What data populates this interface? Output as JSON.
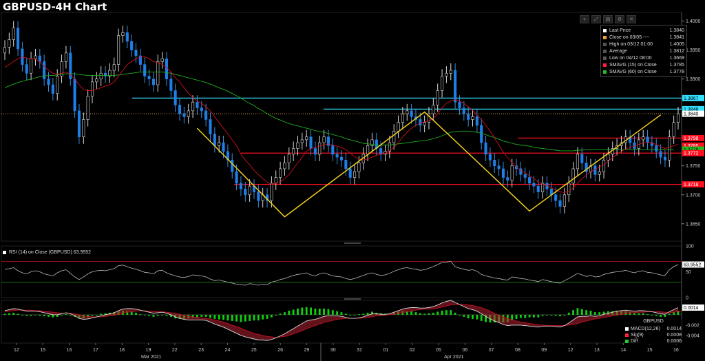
{
  "title": "GBPUSD-4H Chart",
  "toolbar": {
    "icons": [
      "+",
      "⤢",
      "▤",
      "⚙",
      "✕"
    ]
  },
  "legend": {
    "items": [
      {
        "label": "Last Price",
        "value": "1.3840",
        "color": "#ffffff"
      },
      {
        "label": "Close on 03/05 ----",
        "value": "1.3841",
        "color": "#f0a030"
      },
      {
        "label": "High on 03/12 01:00",
        "value": "1.4005",
        "color": "#555555"
      },
      {
        "label": "Average",
        "value": "1.3812",
        "color": "#555555"
      },
      {
        "label": "Low on 04/12 08:00",
        "value": "1.3669",
        "color": "#555555"
      },
      {
        "label": "SMAVG (15)  on Close",
        "value": "1.3785",
        "color": "#ff2040"
      },
      {
        "label": "SMAVG (60)  on Close",
        "value": "1.3778",
        "color": "#20c020"
      }
    ]
  },
  "rsi_legend": "RSI (14)  on Close (GBPUSD) 63.9552",
  "macd_legend": {
    "header": "GBPUSD",
    "items": [
      {
        "label": "MACD(12,26)",
        "value": "0.0014",
        "color": "#ffffff"
      },
      {
        "label": "Sig(9)",
        "value": "0.0008",
        "color": "#ff2040"
      },
      {
        "label": "Diff",
        "value": "0.0006",
        "color": "#20d020"
      }
    ]
  },
  "chart_data": [
    {
      "type": "candlestick",
      "title": "GBPUSD-4H Chart",
      "ylim": [
        1.362,
        1.4015
      ],
      "y_ticks": [
        "1.4000",
        "1.3950",
        "1.3900",
        "1.3850",
        "1.3800",
        "1.3750",
        "1.3700",
        "1.3650"
      ],
      "x_ticks": [
        "12",
        "15",
        "16",
        "17",
        "18",
        "19",
        "22",
        "23",
        "24",
        "25",
        "26",
        "29",
        "30",
        "31",
        "01",
        "02",
        "05",
        "06",
        "07",
        "08",
        "09",
        "12",
        "13",
        "14",
        "15",
        "16"
      ],
      "month_labels": [
        "Mar 2021",
        "Apr 2021"
      ],
      "close": [
        1.3955,
        1.3968,
        1.3988,
        1.3952,
        1.3925,
        1.391,
        1.3935,
        1.394,
        1.393,
        1.39,
        1.389,
        1.3875,
        1.3905,
        1.393,
        1.3945,
        1.39,
        1.3845,
        1.38,
        1.383,
        1.387,
        1.3895,
        1.39,
        1.391,
        1.3905,
        1.3915,
        1.3925,
        1.3975,
        1.398,
        1.3965,
        1.395,
        1.394,
        1.3925,
        1.3905,
        1.39,
        1.389,
        1.393,
        1.3935,
        1.39,
        1.388,
        1.3855,
        1.384,
        1.3835,
        1.3845,
        1.386,
        1.385,
        1.3845,
        1.383,
        1.3805,
        1.3785,
        1.379,
        1.3775,
        1.376,
        1.374,
        1.372,
        1.371,
        1.37,
        1.3715,
        1.3705,
        1.369,
        1.37,
        1.369,
        1.372,
        1.373,
        1.3745,
        1.3755,
        1.377,
        1.378,
        1.379,
        1.3795,
        1.38,
        1.378,
        1.377,
        1.379,
        1.38,
        1.3785,
        1.377,
        1.3765,
        1.376,
        1.3745,
        1.373,
        1.374,
        1.3755,
        1.377,
        1.3785,
        1.3795,
        1.378,
        1.377,
        1.3775,
        1.379,
        1.381,
        1.3825,
        1.384,
        1.3845,
        1.3835,
        1.383,
        1.382,
        1.3825,
        1.384,
        1.3855,
        1.388,
        1.3905,
        1.391,
        1.3915,
        1.386,
        1.385,
        1.384,
        1.383,
        1.3835,
        1.382,
        1.379,
        1.377,
        1.376,
        1.375,
        1.3745,
        1.373,
        1.3725,
        1.375,
        1.3745,
        1.3735,
        1.373,
        1.372,
        1.3715,
        1.3705,
        1.372,
        1.371,
        1.37,
        1.369,
        1.368,
        1.37,
        1.372,
        1.3745,
        1.377,
        1.3755,
        1.374,
        1.375,
        1.3735,
        1.374,
        1.376,
        1.377,
        1.378,
        1.3785,
        1.379,
        1.38,
        1.379,
        1.378,
        1.3795,
        1.38,
        1.379,
        1.3785,
        1.3775,
        1.3765,
        1.376,
        1.38,
        1.3825,
        1.384
      ],
      "ma15": [
        1.392,
        1.3925,
        1.393,
        1.3935,
        1.3938,
        1.3936,
        1.3935,
        1.3934,
        1.393,
        1.3922,
        1.3915,
        1.391,
        1.3908,
        1.391,
        1.3912,
        1.3908,
        1.39,
        1.389,
        1.3882,
        1.388,
        1.388,
        1.3882,
        1.3885,
        1.3888,
        1.389,
        1.3895,
        1.3905,
        1.3915,
        1.3925,
        1.393,
        1.3935,
        1.3938,
        1.3938,
        1.3935,
        1.393,
        1.3928,
        1.3925,
        1.392,
        1.3912,
        1.3902,
        1.3895,
        1.3885,
        1.3875,
        1.3868,
        1.3862,
        1.3858,
        1.3852,
        1.3845,
        1.3835,
        1.3825,
        1.3815,
        1.3805,
        1.3795,
        1.3785,
        1.377,
        1.376,
        1.3752,
        1.3742,
        1.3735,
        1.3728,
        1.3722,
        1.3718,
        1.372,
        1.3722,
        1.3728,
        1.3735,
        1.3745,
        1.3755,
        1.3765,
        1.3775,
        1.378,
        1.3782,
        1.3784,
        1.3786,
        1.3788,
        1.3786,
        1.3784,
        1.3782,
        1.3778,
        1.3772,
        1.3766,
        1.3762,
        1.376,
        1.3762,
        1.3765,
        1.3768,
        1.377,
        1.3772,
        1.3776,
        1.3782,
        1.379,
        1.38,
        1.3808,
        1.3815,
        1.382,
        1.3824,
        1.3826,
        1.3828,
        1.3832,
        1.384,
        1.385,
        1.3858,
        1.3862,
        1.3864,
        1.3862,
        1.3858,
        1.3852,
        1.3846,
        1.3838,
        1.383,
        1.382,
        1.381,
        1.3798,
        1.3786,
        1.3774,
        1.3764,
        1.3756,
        1.3748,
        1.3742,
        1.3738,
        1.3733,
        1.3728,
        1.3722,
        1.3718,
        1.3716,
        1.3712,
        1.3708,
        1.3705,
        1.3704,
        1.3706,
        1.3712,
        1.372,
        1.3728,
        1.3734,
        1.374,
        1.3744,
        1.3748,
        1.3752,
        1.3758,
        1.3764,
        1.377,
        1.3775,
        1.3779,
        1.3782,
        1.3784,
        1.3787,
        1.379,
        1.379,
        1.3789,
        1.3787,
        1.3783,
        1.378,
        1.3782,
        1.3785,
        1.3787
      ],
      "ma60": [
        1.3885,
        1.3888,
        1.3891,
        1.3894,
        1.3896,
        1.3898,
        1.39,
        1.3902,
        1.3904,
        1.3905,
        1.3906,
        1.3906,
        1.3907,
        1.3908,
        1.3909,
        1.3909,
        1.3909,
        1.3908,
        1.3907,
        1.3906,
        1.3906,
        1.3906,
        1.3906,
        1.3906,
        1.3906,
        1.3906,
        1.3907,
        1.3908,
        1.3909,
        1.391,
        1.3911,
        1.3912,
        1.3912,
        1.3912,
        1.3912,
        1.3912,
        1.3912,
        1.3911,
        1.391,
        1.3908,
        1.3906,
        1.3904,
        1.3902,
        1.39,
        1.3898,
        1.3896,
        1.3894,
        1.3891,
        1.3888,
        1.3885,
        1.3882,
        1.3879,
        1.3875,
        1.3871,
        1.3867,
        1.3862,
        1.3858,
        1.3854,
        1.3849,
        1.3845,
        1.384,
        1.3836,
        1.3832,
        1.3829,
        1.3826,
        1.3823,
        1.3821,
        1.3819,
        1.3817,
        1.3815,
        1.3813,
        1.3811,
        1.3809,
        1.3808,
        1.3806,
        1.3804,
        1.3802,
        1.38,
        1.3797,
        1.3795,
        1.3793,
        1.3791,
        1.3789,
        1.3788,
        1.3787,
        1.3786,
        1.3786,
        1.3786,
        1.3786,
        1.3787,
        1.3788,
        1.3789,
        1.379,
        1.3791,
        1.3792,
        1.3793,
        1.3794,
        1.3795,
        1.3797,
        1.3799,
        1.3802,
        1.3805,
        1.3808,
        1.3809,
        1.381,
        1.381,
        1.381,
        1.3809,
        1.3808,
        1.3806,
        1.3804,
        1.3801,
        1.3799,
        1.3796,
        1.3793,
        1.3791,
        1.3789,
        1.3787,
        1.3786,
        1.3785,
        1.3784,
        1.3782,
        1.3781,
        1.378,
        1.3779,
        1.3778,
        1.3777,
        1.3776,
        1.3776,
        1.3776,
        1.3776,
        1.3777,
        1.3777,
        1.3778,
        1.3778,
        1.3778,
        1.3778,
        1.3778,
        1.3778,
        1.3778,
        1.3778,
        1.3778,
        1.3778,
        1.3778,
        1.3778,
        1.3778,
        1.3778,
        1.3778,
        1.3778,
        1.3778,
        1.3778,
        1.3778,
        1.3778,
        1.3778
      ],
      "hlines": [
        {
          "value": 1.3867,
          "label": "1.3867",
          "color": "#33e0ff"
        },
        {
          "value": 1.3848,
          "label": "1.3848",
          "color": "#33e0ff"
        },
        {
          "value": 1.384,
          "label": "1.3840",
          "color": "#ffffff"
        },
        {
          "value": 1.3798,
          "label": "1.3798",
          "color": "#ff1020"
        },
        {
          "value": 1.3785,
          "label": "1.3785",
          "color": "#ff1020"
        },
        {
          "value": 1.3778,
          "label": "1.3778",
          "color": "#20c020"
        },
        {
          "value": 1.3772,
          "label": "1.3772",
          "color": "#ff1020"
        },
        {
          "value": 1.3718,
          "label": "1.3718",
          "color": "#ff1020"
        }
      ],
      "trendlines": [
        {
          "points": [
            [
              44,
              1.3815
            ],
            [
              64,
              1.3662
            ],
            [
              96,
              1.3843
            ],
            [
              120,
              1.3672
            ],
            [
              150,
              1.3838
            ]
          ],
          "color": "#f0d020"
        }
      ]
    },
    {
      "type": "line",
      "name": "RSI (14) on Close (GBPUSD)",
      "ylim": [
        0,
        100
      ],
      "y_ticks": [
        "100",
        "50",
        "0"
      ],
      "last_label": "63.9552",
      "levels": [
        70,
        30
      ],
      "values": [
        55,
        56,
        58,
        52,
        48,
        46,
        50,
        52,
        50,
        46,
        44,
        42,
        48,
        52,
        54,
        47,
        40,
        35,
        40,
        46,
        50,
        52,
        53,
        52,
        54,
        56,
        62,
        63,
        60,
        57,
        55,
        52,
        49,
        48,
        46,
        52,
        53,
        48,
        45,
        42,
        40,
        39,
        41,
        44,
        43,
        42,
        40,
        36,
        33,
        34,
        32,
        30,
        28,
        26,
        25,
        24,
        27,
        26,
        24,
        26,
        25,
        30,
        32,
        35,
        37,
        40,
        43,
        45,
        46,
        48,
        44,
        42,
        46,
        48,
        45,
        42,
        41,
        40,
        37,
        35,
        37,
        40,
        43,
        46,
        48,
        45,
        43,
        44,
        47,
        51,
        54,
        57,
        58,
        56,
        55,
        53,
        54,
        57,
        60,
        64,
        68,
        69,
        70,
        60,
        57,
        55,
        53,
        54,
        51,
        45,
        42,
        40,
        38,
        37,
        35,
        34,
        40,
        39,
        37,
        36,
        34,
        33,
        31,
        35,
        33,
        31,
        29,
        28,
        33,
        37,
        42,
        47,
        44,
        41,
        43,
        40,
        41,
        45,
        47,
        49,
        50,
        51,
        53,
        50,
        48,
        51,
        52,
        49,
        48,
        46,
        44,
        43,
        54,
        60,
        64
      ]
    },
    {
      "type": "bar",
      "name": "MACD(12,26)",
      "ylim": [
        -0.0055,
        0.0028
      ],
      "y_ticks": [
        "0.0014",
        "-0.002",
        "-0.004"
      ],
      "last_label": "0.0014",
      "macd": [
        0.0008,
        0.001,
        0.0012,
        0.0011,
        0.0009,
        0.0007,
        0.0007,
        0.0007,
        0.0006,
        0.0004,
        0.0002,
        0.0,
        0.0,
        0.0002,
        0.0004,
        0.0002,
        -0.0002,
        -0.0007,
        -0.0009,
        -0.0008,
        -0.0006,
        -0.0004,
        -0.0002,
        0.0,
        0.0002,
        0.0004,
        0.0008,
        0.0011,
        0.0012,
        0.0012,
        0.0011,
        0.0009,
        0.0007,
        0.0005,
        0.0003,
        0.0004,
        0.0005,
        0.0003,
        0.0,
        -0.0004,
        -0.0007,
        -0.0009,
        -0.001,
        -0.001,
        -0.001,
        -0.001,
        -0.0011,
        -0.0014,
        -0.0018,
        -0.0021,
        -0.0024,
        -0.0028,
        -0.0032,
        -0.0036,
        -0.004,
        -0.0043,
        -0.0045,
        -0.0047,
        -0.0049,
        -0.0049,
        -0.005,
        -0.0048,
        -0.0045,
        -0.0041,
        -0.0037,
        -0.0032,
        -0.0027,
        -0.0022,
        -0.0017,
        -0.0012,
        -0.001,
        -0.0009,
        -0.0006,
        -0.0003,
        -0.0002,
        -0.0002,
        -0.0002,
        -0.0003,
        -0.0005,
        -0.0007,
        -0.0007,
        -0.0006,
        -0.0004,
        -0.0001,
        0.0002,
        0.0002,
        0.0001,
        0.0001,
        0.0002,
        0.0005,
        0.0008,
        0.0011,
        0.0013,
        0.0014,
        0.0014,
        0.0013,
        0.0013,
        0.0014,
        0.0016,
        0.0019,
        0.0023,
        0.0026,
        0.0028,
        0.0024,
        0.002,
        0.0016,
        0.0012,
        0.001,
        0.0007,
        0.0002,
        -0.0003,
        -0.0008,
        -0.0012,
        -0.0015,
        -0.0019,
        -0.0021,
        -0.002,
        -0.002,
        -0.002,
        -0.0021,
        -0.0022,
        -0.0023,
        -0.0024,
        -0.0022,
        -0.0022,
        -0.0022,
        -0.0023,
        -0.0024,
        -0.0021,
        -0.0016,
        -0.001,
        -0.0004,
        -0.0003,
        -0.0003,
        -0.0002,
        -0.0003,
        -0.0002,
        0.0001,
        0.0003,
        0.0005,
        0.0007,
        0.0008,
        0.0009,
        0.0008,
        0.0007,
        0.0008,
        0.0008,
        0.0007,
        0.0006,
        0.0004,
        0.0002,
        0.0001,
        0.0006,
        0.001,
        0.0014
      ],
      "signal": [
        0.0006,
        0.0007,
        0.0008,
        0.0009,
        0.0009,
        0.0009,
        0.0009,
        0.0008,
        0.0008,
        0.0007,
        0.0006,
        0.0005,
        0.0004,
        0.0003,
        0.0003,
        0.0003,
        0.0002,
        0.0,
        -0.0002,
        -0.0003,
        -0.0004,
        -0.0004,
        -0.0004,
        -0.0003,
        -0.0002,
        -0.0001,
        0.0001,
        0.0003,
        0.0005,
        0.0006,
        0.0007,
        0.0008,
        0.0008,
        0.0007,
        0.0007,
        0.0006,
        0.0006,
        0.0005,
        0.0004,
        0.0003,
        0.0001,
        -0.0001,
        -0.0003,
        -0.0004,
        -0.0005,
        -0.0006,
        -0.0007,
        -0.0008,
        -0.001,
        -0.0012,
        -0.0014,
        -0.0017,
        -0.002,
        -0.0023,
        -0.0026,
        -0.003,
        -0.0033,
        -0.0036,
        -0.0038,
        -0.004,
        -0.0042,
        -0.0043,
        -0.0044,
        -0.0043,
        -0.0042,
        -0.004,
        -0.0037,
        -0.0034,
        -0.0031,
        -0.0027,
        -0.0024,
        -0.0021,
        -0.0018,
        -0.0015,
        -0.0013,
        -0.0011,
        -0.0009,
        -0.0008,
        -0.0007,
        -0.0007,
        -0.0007,
        -0.0007,
        -0.0006,
        -0.0005,
        -0.0004,
        -0.0002,
        -0.0002,
        -0.0001,
        0.0,
        0.0001,
        0.0002,
        0.0004,
        0.0006,
        0.0007,
        0.0009,
        0.001,
        0.0011,
        0.0011,
        0.0012,
        0.0013,
        0.0015,
        0.0017,
        0.0019,
        0.002,
        0.002,
        0.002,
        0.0019,
        0.0018,
        0.0016,
        0.0014,
        0.0011,
        0.0007,
        0.0003,
        -0.0001,
        -0.0004,
        -0.0007,
        -0.001,
        -0.0012,
        -0.0014,
        -0.0015,
        -0.0017,
        -0.0018,
        -0.0019,
        -0.002,
        -0.0021,
        -0.0021,
        -0.0021,
        -0.0021,
        -0.0021,
        -0.002,
        -0.0019,
        -0.0017,
        -0.0014,
        -0.0012,
        -0.001,
        -0.0008,
        -0.0007,
        -0.0005,
        -0.0004,
        -0.0002,
        -0.0001,
        0.0001,
        0.0002,
        0.0003,
        0.0004,
        0.0005,
        0.0005,
        0.0006,
        0.0006,
        0.0006,
        0.0006,
        0.0005,
        0.0004,
        0.0005,
        0.0006,
        0.0008
      ]
    }
  ]
}
